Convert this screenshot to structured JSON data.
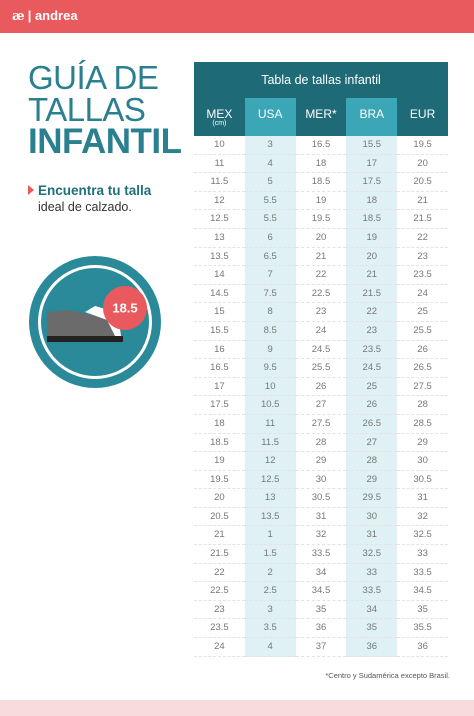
{
  "header": {
    "logo": "andrea"
  },
  "title": [
    "GUÍA DE",
    "TALLAS",
    "INFANTIL"
  ],
  "subtitle": {
    "bold": "Encuentra tu talla",
    "text": "ideal de calzado."
  },
  "badge": "18.5",
  "table": {
    "title": "Tabla de tallas infantil",
    "columns": [
      {
        "name": "MEX",
        "sub": "(cm)"
      },
      {
        "name": "USA"
      },
      {
        "name": "MER*"
      },
      {
        "name": "BRA"
      },
      {
        "name": "EUR"
      }
    ],
    "rows": [
      [
        "10",
        "3",
        "16.5",
        "15.5",
        "19.5"
      ],
      [
        "11",
        "4",
        "18",
        "17",
        "20"
      ],
      [
        "11.5",
        "5",
        "18.5",
        "17.5",
        "20.5"
      ],
      [
        "12",
        "5.5",
        "19",
        "18",
        "21"
      ],
      [
        "12.5",
        "5.5",
        "19.5",
        "18.5",
        "21.5"
      ],
      [
        "13",
        "6",
        "20",
        "19",
        "22"
      ],
      [
        "13.5",
        "6.5",
        "21",
        "20",
        "23"
      ],
      [
        "14",
        "7",
        "22",
        "21",
        "23.5"
      ],
      [
        "14.5",
        "7.5",
        "22.5",
        "21.5",
        "24"
      ],
      [
        "15",
        "8",
        "23",
        "22",
        "25"
      ],
      [
        "15.5",
        "8.5",
        "24",
        "23",
        "25.5"
      ],
      [
        "16",
        "9",
        "24.5",
        "23.5",
        "26"
      ],
      [
        "16.5",
        "9.5",
        "25.5",
        "24.5",
        "26.5"
      ],
      [
        "17",
        "10",
        "26",
        "25",
        "27.5"
      ],
      [
        "17.5",
        "10.5",
        "27",
        "26",
        "28"
      ],
      [
        "18",
        "11",
        "27.5",
        "26.5",
        "28.5"
      ],
      [
        "18.5",
        "11.5",
        "28",
        "27",
        "29"
      ],
      [
        "19",
        "12",
        "29",
        "28",
        "30"
      ],
      [
        "19.5",
        "12.5",
        "30",
        "29",
        "30.5"
      ],
      [
        "20",
        "13",
        "30.5",
        "29.5",
        "31"
      ],
      [
        "20.5",
        "13.5",
        "31",
        "30",
        "32"
      ],
      [
        "21",
        "1",
        "32",
        "31",
        "32.5"
      ],
      [
        "21.5",
        "1.5",
        "33.5",
        "32.5",
        "33"
      ],
      [
        "22",
        "2",
        "34",
        "33",
        "33.5"
      ],
      [
        "22.5",
        "2.5",
        "34.5",
        "33.5",
        "34.5"
      ],
      [
        "23",
        "3",
        "35",
        "34",
        "35"
      ],
      [
        "23.5",
        "3.5",
        "36",
        "35",
        "35.5"
      ],
      [
        "24",
        "4",
        "37",
        "36",
        "36"
      ]
    ],
    "footnote": "*Centro y Sudamérica excepto Brasil."
  }
}
